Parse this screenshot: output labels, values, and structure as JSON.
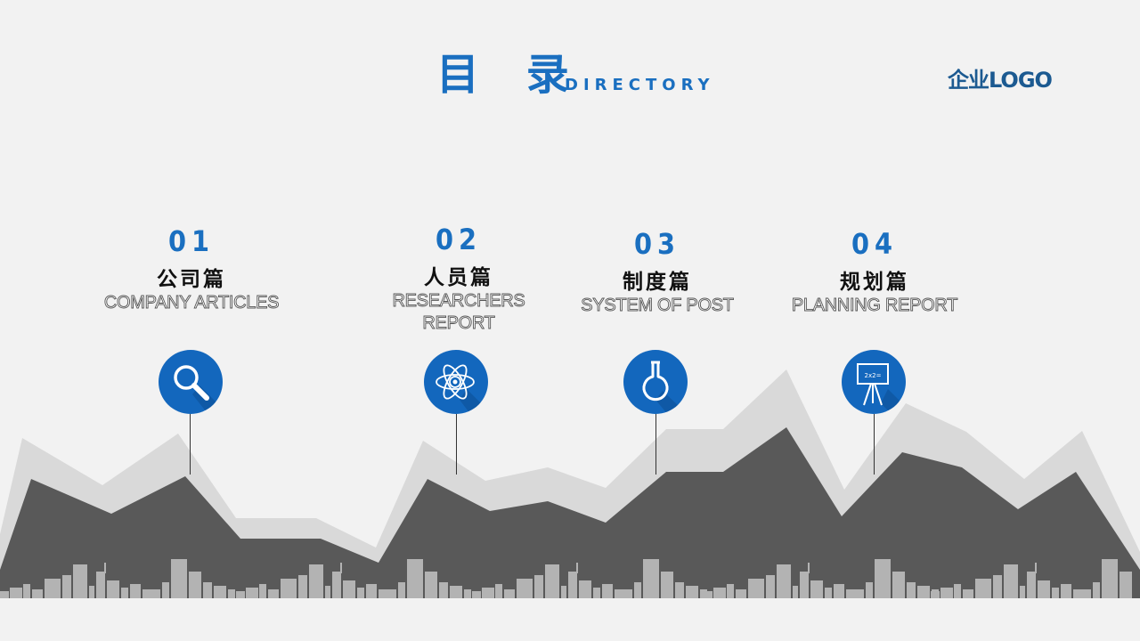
{
  "header": {
    "title_cn": "目 录",
    "title_en": "DIRECTORY",
    "logo": "企业LOGO"
  },
  "items": [
    {
      "number": "01",
      "title_cn": "公司篇",
      "title_en": "COMPANY ARTICLES",
      "icon": "magnifier-icon"
    },
    {
      "number": "02",
      "title_cn": "人员篇",
      "title_en": "RESEARCHERS REPORT",
      "icon": "atom-icon"
    },
    {
      "number": "03",
      "title_cn": "制度篇",
      "title_en": "SYSTEM OF POST",
      "icon": "flask-icon"
    },
    {
      "number": "04",
      "title_cn": "规划篇",
      "title_en": "PLANNING REPORT",
      "icon": "blackboard-icon"
    }
  ],
  "icon_board_text": "2x2=",
  "colors": {
    "accent": "#1a6fc0",
    "icon_circle": "#1367bd",
    "logo": "#1c5a91",
    "mountain_light": "#d9d9d9",
    "mountain_dark": "#595959",
    "buildings": "#b3b3b3",
    "background": "#f2f2f2"
  }
}
